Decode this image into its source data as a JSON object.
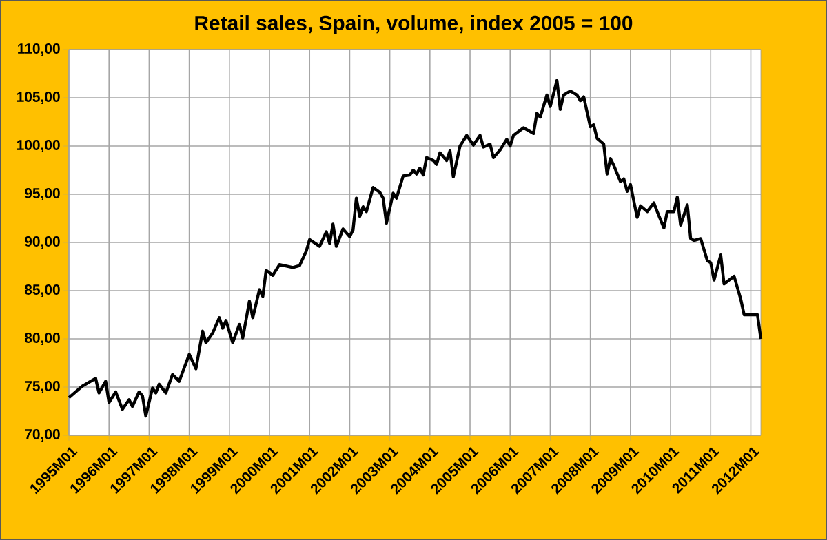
{
  "chart_data": {
    "type": "line",
    "title": "Retail sales, Spain, volume, index 2005 = 100",
    "x": [
      "1995-01",
      "1995-05",
      "1995-09",
      "1995-10",
      "1995-12",
      "1996-01",
      "1996-03",
      "1996-05",
      "1996-07",
      "1996-08",
      "1996-10",
      "1996-11",
      "1996-12",
      "1997-02",
      "1997-03",
      "1997-04",
      "1997-06",
      "1997-08",
      "1997-10",
      "1998-01",
      "1998-03",
      "1998-05",
      "1998-06",
      "1998-08",
      "1998-10",
      "1998-11",
      "1998-12",
      "1999-02",
      "1999-04",
      "1999-05",
      "1999-07",
      "1999-08",
      "1999-10",
      "1999-11",
      "1999-12",
      "2000-02",
      "2000-04",
      "2000-08",
      "2000-10",
      "2000-12",
      "2001-01",
      "2001-04",
      "2001-06",
      "2001-07",
      "2001-08",
      "2001-09",
      "2001-11",
      "2002-01",
      "2002-02",
      "2002-03",
      "2002-04",
      "2002-05",
      "2002-06",
      "2002-08",
      "2002-10",
      "2002-11",
      "2002-12",
      "2003-02",
      "2003-03",
      "2003-05",
      "2003-07",
      "2003-08",
      "2003-09",
      "2003-10",
      "2003-11",
      "2003-12",
      "2004-02",
      "2004-03",
      "2004-04",
      "2004-06",
      "2004-07",
      "2004-08",
      "2004-10",
      "2004-12",
      "2005-02",
      "2005-04",
      "2005-05",
      "2005-07",
      "2005-08",
      "2005-10",
      "2005-12",
      "2006-01",
      "2006-02",
      "2006-05",
      "2006-08",
      "2006-09",
      "2006-10",
      "2006-12",
      "2007-01",
      "2007-03",
      "2007-04",
      "2007-05",
      "2007-07",
      "2007-09",
      "2007-10",
      "2007-11",
      "2008-01",
      "2008-02",
      "2008-03",
      "2008-05",
      "2008-06",
      "2008-07",
      "2008-08",
      "2008-10",
      "2008-11",
      "2008-12",
      "2009-01",
      "2009-03",
      "2009-04",
      "2009-06",
      "2009-08",
      "2009-09",
      "2009-11",
      "2009-12",
      "2010-02",
      "2010-03",
      "2010-04",
      "2010-06",
      "2010-07",
      "2010-08",
      "2010-10",
      "2010-12",
      "2011-01",
      "2011-02",
      "2011-04",
      "2011-05",
      "2011-08",
      "2011-10",
      "2011-11",
      "2012-01",
      "2012-03",
      "2012-04"
    ],
    "values": [
      73.9,
      75.1,
      75.9,
      74.4,
      75.6,
      73.4,
      74.5,
      72.7,
      73.7,
      73.0,
      74.5,
      74.1,
      72.0,
      74.9,
      74.4,
      75.3,
      74.4,
      76.3,
      75.6,
      78.4,
      76.9,
      80.8,
      79.6,
      80.6,
      82.2,
      81.1,
      81.9,
      79.6,
      81.5,
      80.1,
      83.9,
      82.2,
      85.1,
      84.4,
      87.1,
      86.6,
      87.7,
      87.4,
      87.6,
      89.1,
      90.3,
      89.6,
      91.1,
      89.9,
      91.9,
      89.6,
      91.4,
      90.6,
      91.3,
      94.6,
      92.7,
      93.7,
      93.2,
      95.7,
      95.2,
      94.6,
      92.0,
      95.1,
      94.6,
      96.9,
      97.0,
      97.5,
      97.1,
      97.7,
      97.0,
      98.8,
      98.5,
      98.1,
      99.3,
      98.5,
      99.5,
      96.8,
      100.0,
      101.1,
      100.1,
      101.1,
      99.9,
      100.2,
      98.8,
      99.6,
      100.7,
      100.0,
      101.1,
      101.9,
      101.3,
      103.4,
      103.0,
      105.3,
      104.1,
      106.8,
      103.8,
      105.3,
      105.7,
      105.3,
      104.7,
      105.1,
      102.0,
      102.2,
      100.8,
      100.2,
      97.1,
      98.7,
      98.0,
      96.3,
      96.6,
      95.3,
      96.0,
      92.6,
      93.8,
      93.2,
      94.1,
      93.2,
      91.5,
      93.2,
      93.2,
      94.7,
      91.8,
      93.9,
      90.4,
      90.2,
      90.4,
      88.1,
      87.9,
      86.1,
      88.7,
      85.7,
      86.5,
      84.1,
      82.5,
      82.5,
      82.5,
      80.0
    ],
    "color": "#000000",
    "xlim": [
      "1995-01",
      "2012-04"
    ],
    "ylim": [
      70,
      110
    ],
    "xticks": [
      {
        "value": "1995-01",
        "label": "1995M01"
      },
      {
        "value": "1996-01",
        "label": "1996M01"
      },
      {
        "value": "1997-01",
        "label": "1997M01"
      },
      {
        "value": "1998-01",
        "label": "1998M01"
      },
      {
        "value": "1999-01",
        "label": "1999M01"
      },
      {
        "value": "2000-01",
        "label": "2000M01"
      },
      {
        "value": "2001-01",
        "label": "2001M01"
      },
      {
        "value": "2002-01",
        "label": "2002M01"
      },
      {
        "value": "2003-01",
        "label": "2003M01"
      },
      {
        "value": "2004-01",
        "label": "2004M01"
      },
      {
        "value": "2005-01",
        "label": "2005M01"
      },
      {
        "value": "2006-01",
        "label": "2006M01"
      },
      {
        "value": "2007-01",
        "label": "2007M01"
      },
      {
        "value": "2008-01",
        "label": "2008M01"
      },
      {
        "value": "2009-01",
        "label": "2009M01"
      },
      {
        "value": "2010-01",
        "label": "2010M01"
      },
      {
        "value": "2011-01",
        "label": "2011M01"
      },
      {
        "value": "2012-01",
        "label": "2012M01"
      }
    ],
    "yticks": [
      {
        "value": 70,
        "label": "70,00"
      },
      {
        "value": 75,
        "label": "75,00"
      },
      {
        "value": 80,
        "label": "80,00"
      },
      {
        "value": 85,
        "label": "85,00"
      },
      {
        "value": 90,
        "label": "90,00"
      },
      {
        "value": 95,
        "label": "95,00"
      },
      {
        "value": 100,
        "label": "100,00"
      },
      {
        "value": 105,
        "label": "105,00"
      },
      {
        "value": 110,
        "label": "110,00"
      }
    ],
    "grid": true
  }
}
